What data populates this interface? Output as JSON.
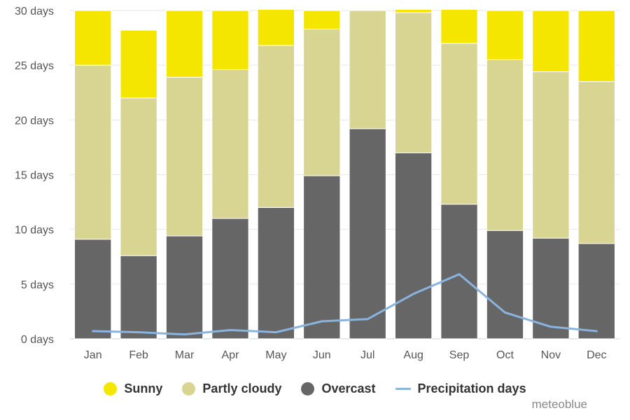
{
  "chart_data": {
    "type": "bar",
    "stacked": true,
    "categories": [
      "Jan",
      "Feb",
      "Mar",
      "Apr",
      "May",
      "Jun",
      "Jul",
      "Aug",
      "Sep",
      "Oct",
      "Nov",
      "Dec"
    ],
    "ylim": [
      0,
      30
    ],
    "yticks": [
      0,
      5,
      10,
      15,
      20,
      25,
      30
    ],
    "ytick_labels": [
      "0 days",
      "5 days",
      "10 days",
      "15 days",
      "20 days",
      "25 days",
      "30 days"
    ],
    "grid": true,
    "legend_position": "bottom-center",
    "series": [
      {
        "name": "Overcast",
        "type": "bar",
        "color": "#666666",
        "values": [
          9.1,
          7.6,
          9.4,
          11.0,
          12.0,
          14.9,
          19.2,
          17.0,
          12.3,
          9.9,
          9.2,
          8.7
        ]
      },
      {
        "name": "Partly cloudy",
        "type": "bar",
        "color": "#d8d592",
        "values": [
          15.9,
          14.4,
          14.5,
          13.6,
          14.8,
          13.4,
          10.8,
          12.8,
          14.7,
          15.6,
          15.2,
          14.8
        ]
      },
      {
        "name": "Sunny",
        "type": "bar",
        "color": "#f4e600",
        "values": [
          5.0,
          6.2,
          6.1,
          5.4,
          3.3,
          1.7,
          0.0,
          0.3,
          3.1,
          4.5,
          5.6,
          6.5
        ]
      },
      {
        "name": "Precipitation days",
        "type": "line",
        "color": "#8ab4e0",
        "values": [
          0.7,
          0.6,
          0.4,
          0.8,
          0.6,
          1.6,
          1.8,
          4.1,
          5.9,
          2.4,
          1.1,
          0.7
        ]
      }
    ]
  },
  "legend": [
    {
      "label": "Sunny",
      "color": "#f4e600",
      "shape": "circle"
    },
    {
      "label": "Partly cloudy",
      "color": "#d8d592",
      "shape": "circle"
    },
    {
      "label": "Overcast",
      "color": "#666666",
      "shape": "circle"
    },
    {
      "label": "Precipitation days",
      "color": "#8ab4e0",
      "shape": "line"
    }
  ],
  "credit": "meteoblue"
}
